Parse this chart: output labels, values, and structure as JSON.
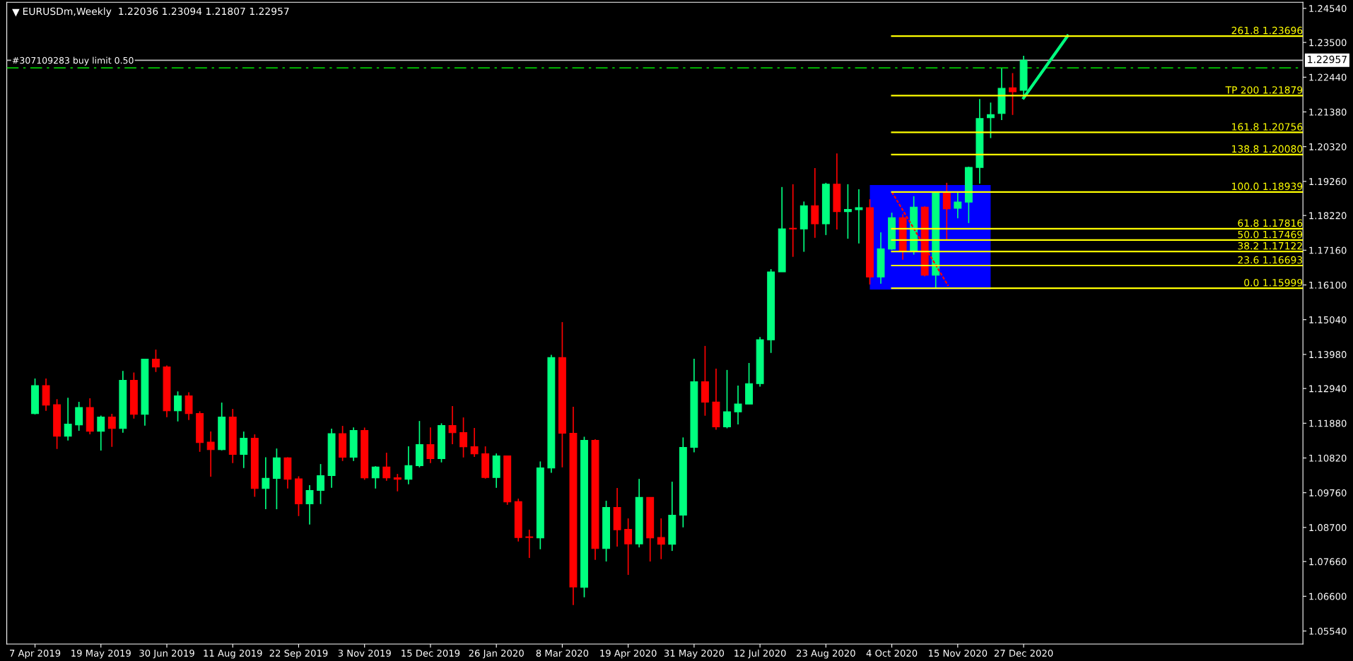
{
  "chart_data": {
    "type": "candlestick",
    "title": "EURUSDm,Weekly  1.22036 1.23094 1.21807 1.22957",
    "x": [
      "2019-04-07",
      "2019-04-14",
      "2019-04-21",
      "2019-04-28",
      "2019-05-05",
      "2019-05-12",
      "2019-05-19",
      "2019-05-26",
      "2019-06-02",
      "2019-06-09",
      "2019-06-16",
      "2019-06-23",
      "2019-06-30",
      "2019-07-07",
      "2019-07-14",
      "2019-07-21",
      "2019-07-28",
      "2019-08-04",
      "2019-08-11",
      "2019-08-18",
      "2019-08-25",
      "2019-09-01",
      "2019-09-08",
      "2019-09-15",
      "2019-09-22",
      "2019-09-29",
      "2019-10-06",
      "2019-10-13",
      "2019-10-20",
      "2019-10-27",
      "2019-11-03",
      "2019-11-10",
      "2019-11-17",
      "2019-11-24",
      "2019-12-01",
      "2019-12-08",
      "2019-12-15",
      "2019-12-22",
      "2019-12-29",
      "2020-01-05",
      "2020-01-12",
      "2020-01-19",
      "2020-01-26",
      "2020-02-02",
      "2020-02-09",
      "2020-02-16",
      "2020-02-23",
      "2020-03-01",
      "2020-03-08",
      "2020-03-15",
      "2020-03-22",
      "2020-03-29",
      "2020-04-05",
      "2020-04-12",
      "2020-04-19",
      "2020-04-26",
      "2020-05-03",
      "2020-05-10",
      "2020-05-17",
      "2020-05-24",
      "2020-05-31",
      "2020-06-07",
      "2020-06-14",
      "2020-06-21",
      "2020-06-28",
      "2020-07-05",
      "2020-07-12",
      "2020-07-19",
      "2020-07-26",
      "2020-08-02",
      "2020-08-09",
      "2020-08-16",
      "2020-08-23",
      "2020-08-30",
      "2020-09-06",
      "2020-09-13",
      "2020-09-20",
      "2020-09-27",
      "2020-10-04",
      "2020-10-11",
      "2020-10-18",
      "2020-10-25",
      "2020-11-01",
      "2020-11-08",
      "2020-11-15",
      "2020-11-22",
      "2020-11-29",
      "2020-12-06",
      "2020-12-13",
      "2020-12-20",
      "2020-12-27"
    ],
    "ohlc": [
      [
        1.12172,
        1.13242,
        1.1215,
        1.13027
      ],
      [
        1.13027,
        1.13242,
        1.12258,
        1.12431
      ],
      [
        1.12445,
        1.12617,
        1.11095,
        1.11482
      ],
      [
        1.11482,
        1.1266,
        1.11353,
        1.11856
      ],
      [
        1.11827,
        1.12531,
        1.11648,
        1.12359
      ],
      [
        1.12359,
        1.12639,
        1.1154,
        1.11633
      ],
      [
        1.11633,
        1.12115,
        1.11044,
        1.12071
      ],
      [
        1.12071,
        1.12165,
        1.11159,
        1.11719
      ],
      [
        1.11719,
        1.13479,
        1.1159,
        1.13192
      ],
      [
        1.13192,
        1.13429,
        1.12021,
        1.1215
      ],
      [
        1.1215,
        1.13838,
        1.11806,
        1.13838
      ],
      [
        1.13838,
        1.14126,
        1.13443,
        1.13594
      ],
      [
        1.13601,
        1.13645,
        1.12064,
        1.12258
      ],
      [
        1.12258,
        1.12854,
        1.11935,
        1.12718
      ],
      [
        1.12718,
        1.12826,
        1.11978,
        1.12172
      ],
      [
        1.12179,
        1.12244,
        1.11008,
        1.11289
      ],
      [
        1.11303,
        1.11626,
        1.10247,
        1.11073
      ],
      [
        1.11073,
        1.1251,
        1.11051,
        1.12071
      ],
      [
        1.12071,
        1.12316,
        1.10664,
        1.10929
      ],
      [
        1.10929,
        1.11626,
        1.10513,
        1.11425
      ],
      [
        1.11425,
        1.1154,
        1.09636,
        1.09888
      ],
      [
        1.09888,
        1.10843,
        1.09256,
        1.10197
      ],
      [
        1.10197,
        1.11109,
        1.09256,
        1.10822
      ],
      [
        1.10822,
        1.10843,
        1.09888,
        1.10168
      ],
      [
        1.10182,
        1.10261,
        1.09047,
        1.09421
      ],
      [
        1.09421,
        1.09988,
        1.08789,
        1.0983
      ],
      [
        1.0983,
        1.10635,
        1.09414,
        1.10283
      ],
      [
        1.10283,
        1.11712,
        1.09909,
        1.11561
      ],
      [
        1.11561,
        1.11799,
        1.10728,
        1.10843
      ],
      [
        1.10843,
        1.11755,
        1.10728,
        1.11662
      ],
      [
        1.11662,
        1.11748,
        1.10154,
        1.10211
      ],
      [
        1.10211,
        1.1057,
        1.09888,
        1.10542
      ],
      [
        1.10542,
        1.1098,
        1.10125,
        1.10211
      ],
      [
        1.10218,
        1.10333,
        1.09802,
        1.10168
      ],
      [
        1.10168,
        1.11174,
        1.10017,
        1.10585
      ],
      [
        1.10585,
        1.11949,
        1.10534,
        1.11231
      ],
      [
        1.11231,
        1.11755,
        1.10664,
        1.108
      ],
      [
        1.108,
        1.11878,
        1.10685,
        1.11813
      ],
      [
        1.11813,
        1.12402,
        1.11238,
        1.1159
      ],
      [
        1.11597,
        1.12057,
        1.10836,
        1.11159
      ],
      [
        1.11166,
        1.11734,
        1.1085,
        1.10944
      ],
      [
        1.10951,
        1.11174,
        1.1019,
        1.10225
      ],
      [
        1.10225,
        1.10958,
        1.09909,
        1.10886
      ],
      [
        1.10886,
        1.10886,
        1.09392,
        1.09478
      ],
      [
        1.09486,
        1.09579,
        1.08272,
        1.08394
      ],
      [
        1.08408,
        1.08631,
        1.07769,
        1.08394
      ],
      [
        1.0838,
        1.10714,
        1.08035,
        1.1052
      ],
      [
        1.10513,
        1.13968,
        1.10369,
        1.13882
      ],
      [
        1.13882,
        1.14966,
        1.10534,
        1.11576
      ],
      [
        1.11576,
        1.1238,
        1.06332,
        1.06885
      ],
      [
        1.06871,
        1.11468,
        1.06569,
        1.1136
      ],
      [
        1.1136,
        1.11389,
        1.07711,
        1.08056
      ],
      [
        1.08056,
        1.09514,
        1.07661,
        1.09313
      ],
      [
        1.09313,
        1.09902,
        1.08114,
        1.08631
      ],
      [
        1.08645,
        1.08976,
        1.07252,
        1.082
      ],
      [
        1.082,
        1.10182,
        1.08092,
        1.09615
      ],
      [
        1.09615,
        1.09615,
        1.07661,
        1.0838
      ],
      [
        1.08394,
        1.08976,
        1.07733,
        1.08185
      ],
      [
        1.08185,
        1.10096,
        1.07984,
        1.09076
      ],
      [
        1.09076,
        1.11447,
        1.08703,
        1.11145
      ],
      [
        1.11145,
        1.13847,
        1.10992,
        1.13148
      ],
      [
        1.13148,
        1.14239,
        1.12109,
        1.12526
      ],
      [
        1.12526,
        1.13549,
        1.11682,
        1.11768
      ],
      [
        1.11768,
        1.13506,
        1.11725,
        1.12228
      ],
      [
        1.12228,
        1.13029,
        1.11844,
        1.12467
      ],
      [
        1.12467,
        1.13719,
        1.12467,
        1.13089
      ],
      [
        1.13089,
        1.14512,
        1.12995,
        1.14427
      ],
      [
        1.14427,
        1.16583,
        1.14026,
        1.16498
      ],
      [
        1.16498,
        1.19089,
        1.16498,
        1.1781
      ],
      [
        1.17818,
        1.19174,
        1.16958,
        1.1781
      ],
      [
        1.1781,
        1.18646,
        1.17112,
        1.18518
      ],
      [
        1.18518,
        1.19668,
        1.17538,
        1.17964
      ],
      [
        1.17964,
        1.19217,
        1.17623,
        1.19174
      ],
      [
        1.19174,
        1.20112,
        1.17793,
        1.18339
      ],
      [
        1.18339,
        1.19174,
        1.17512,
        1.18407
      ],
      [
        1.18398,
        1.19021,
        1.17367,
        1.18458
      ],
      [
        1.18458,
        1.18714,
        1.16114,
        1.16345
      ],
      [
        1.16345,
        1.17708,
        1.1614,
        1.17205
      ],
      [
        1.17197,
        1.18305,
        1.17171,
        1.18151
      ],
      [
        1.18151,
        1.18262,
        1.16873,
        1.17154
      ],
      [
        1.17154,
        1.18808,
        1.17026,
        1.18475
      ],
      [
        1.18475,
        1.18501,
        1.16362,
        1.16396
      ],
      [
        1.16396,
        1.18927,
        1.15999,
        1.18901
      ],
      [
        1.18927,
        1.19217,
        1.17453,
        1.18424
      ],
      [
        1.18441,
        1.18927,
        1.18134,
        1.18629
      ],
      [
        1.18629,
        1.19711,
        1.17989,
        1.19686
      ],
      [
        1.19686,
        1.21774,
        1.19191,
        1.21177
      ],
      [
        1.21203,
        1.21663,
        1.2058,
        1.21296
      ],
      [
        1.2133,
        1.22711,
        1.21134,
        1.22098
      ],
      [
        1.22115,
        1.22566,
        1.21288,
        1.21995
      ],
      [
        1.22036,
        1.23094,
        1.21807,
        1.22957
      ]
    ],
    "series": [
      {
        "type": "bar",
        "color": "#0000ff",
        "x": [
          "2020-10-28T12:00"
        ],
        "base": [
          1.1596
        ],
        "values": [
          0.0319
        ]
      },
      {
        "type": "line",
        "color": "#ff0000",
        "line_style": "dotted",
        "x": [
          "2020-10-04",
          "2020-11-09"
        ],
        "values": [
          1.18939,
          1.1607
        ]
      },
      {
        "type": "line",
        "color": "#00ff7f",
        "line_style": "solid",
        "x": [
          "2020-12-27",
          "2021-01-24"
        ],
        "values": [
          1.21807,
          1.23696
        ]
      },
      {
        "type": "line",
        "name": "261.8 1.23696",
        "color": "#ffff00",
        "x": [
          "2020-10-04",
          "2021-06-23"
        ],
        "values": [
          1.23696,
          1.23696
        ]
      },
      {
        "type": "line",
        "name": "TP 200 1.21879",
        "color": "#ffff00",
        "x": [
          "2020-10-04",
          "2021-06-23"
        ],
        "values": [
          1.21879,
          1.21879
        ]
      },
      {
        "type": "line",
        "name": "161.8 1.20756",
        "color": "#ffff00",
        "x": [
          "2020-10-04",
          "2021-06-23"
        ],
        "values": [
          1.20756,
          1.20756
        ]
      },
      {
        "type": "line",
        "name": "138.8 1.20080",
        "color": "#ffff00",
        "x": [
          "2020-10-04",
          "2021-06-23"
        ],
        "values": [
          1.2008,
          1.2008
        ]
      },
      {
        "type": "line",
        "name": "100.0 1.18939",
        "color": "#ffff00",
        "x": [
          "2020-10-04",
          "2021-06-23"
        ],
        "values": [
          1.18939,
          1.18939
        ]
      },
      {
        "type": "line",
        "name": "61.8 1.17816",
        "color": "#ffff00",
        "x": [
          "2020-10-04",
          "2021-06-23"
        ],
        "values": [
          1.17816,
          1.17816
        ]
      },
      {
        "type": "line",
        "name": "50.0 1.17469",
        "color": "#ffff00",
        "x": [
          "2020-10-04",
          "2021-06-23"
        ],
        "values": [
          1.17469,
          1.17469
        ]
      },
      {
        "type": "line",
        "name": "38.2 1.17122",
        "color": "#ffff00",
        "x": [
          "2020-10-04",
          "2021-06-23"
        ],
        "values": [
          1.17122,
          1.17122
        ]
      },
      {
        "type": "line",
        "name": "23.6 1.16693",
        "color": "#ffff00",
        "x": [
          "2020-10-04",
          "2021-06-23"
        ],
        "values": [
          1.16693,
          1.16693
        ]
      },
      {
        "type": "line",
        "name": "0.0 1.15999",
        "color": "#ffff00",
        "x": [
          "2020-10-04",
          "2021-06-23"
        ],
        "values": [
          1.15999,
          1.15999
        ]
      }
    ],
    "ref_lines": [
      {
        "axis": "y",
        "value": 1.22957,
        "label": "1.22957",
        "color": "#c0c0c0",
        "line_style": "solid"
      },
      {
        "axis": "y",
        "value": 1.22724,
        "label": "#307109283 buy limit 0.50",
        "color": "#00c800",
        "line_style": "dashed"
      }
    ],
    "xlim": [
      "2019-03-20",
      "2021-06-23"
    ],
    "xticks": [
      {
        "value": "2019-04-07",
        "label": "7 Apr 2019"
      },
      {
        "value": "2019-05-19",
        "label": "19 May 2019"
      },
      {
        "value": "2019-06-30",
        "label": "30 Jun 2019"
      },
      {
        "value": "2019-08-11",
        "label": "11 Aug 2019"
      },
      {
        "value": "2019-09-22",
        "label": "22 Sep 2019"
      },
      {
        "value": "2019-11-03",
        "label": "3 Nov 2019"
      },
      {
        "value": "2019-12-15",
        "label": "15 Dec 2019"
      },
      {
        "value": "2020-01-26",
        "label": "26 Jan 2020"
      },
      {
        "value": "2020-03-08",
        "label": "8 Mar 2020"
      },
      {
        "value": "2020-04-19",
        "label": "19 Apr 2020"
      },
      {
        "value": "2020-05-31",
        "label": "31 May 2020"
      },
      {
        "value": "2020-07-12",
        "label": "12 Jul 2020"
      },
      {
        "value": "2020-08-23",
        "label": "23 Aug 2020"
      },
      {
        "value": "2020-10-04",
        "label": "4 Oct 2020"
      },
      {
        "value": "2020-11-15",
        "label": "15 Nov 2020"
      },
      {
        "value": "2020-12-27",
        "label": "27 Dec 2020"
      }
    ],
    "ylim": [
      1.05141,
      1.24727
    ],
    "yticks": [
      {
        "value": 1.0554,
        "label": "1.05540"
      },
      {
        "value": 1.066,
        "label": "1.06600"
      },
      {
        "value": 1.0766,
        "label": "1.07660"
      },
      {
        "value": 1.087,
        "label": "1.08700"
      },
      {
        "value": 1.0976,
        "label": "1.09760"
      },
      {
        "value": 1.1082,
        "label": "1.10820"
      },
      {
        "value": 1.1188,
        "label": "1.11880"
      },
      {
        "value": 1.1294,
        "label": "1.12940"
      },
      {
        "value": 1.1398,
        "label": "1.13980"
      },
      {
        "value": 1.1504,
        "label": "1.15040"
      },
      {
        "value": 1.161,
        "label": "1.16100"
      },
      {
        "value": 1.1716,
        "label": "1.17160"
      },
      {
        "value": 1.1822,
        "label": "1.18220"
      },
      {
        "value": 1.1926,
        "label": "1.19260"
      },
      {
        "value": 1.2032,
        "label": "1.20320"
      },
      {
        "value": 1.2138,
        "label": "1.21380"
      },
      {
        "value": 1.2244,
        "label": "1.22440"
      },
      {
        "value": 1.235,
        "label": "1.23500"
      },
      {
        "value": 1.2454,
        "label": "1.24540"
      }
    ],
    "grid": false,
    "legend": false
  }
}
